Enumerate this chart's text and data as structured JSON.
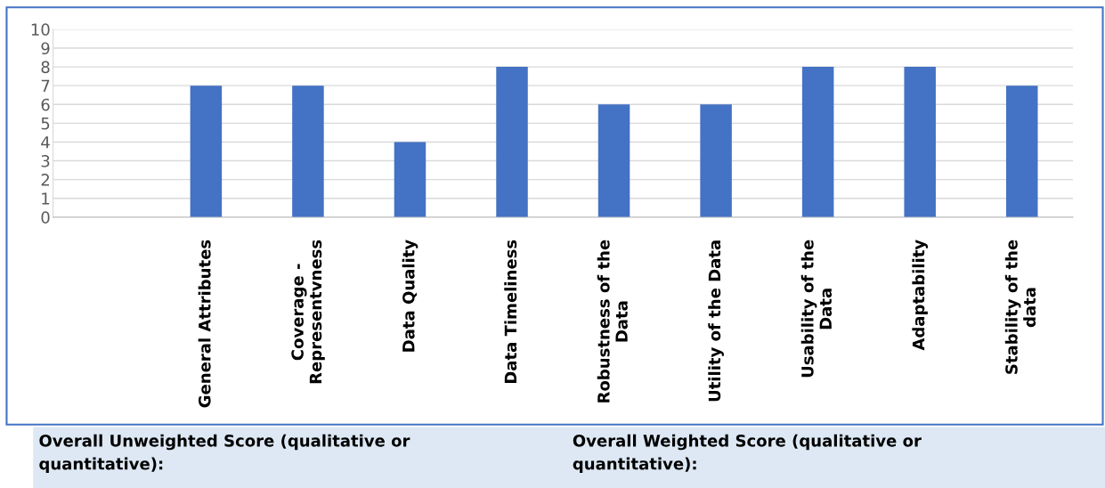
{
  "chart_data": {
    "type": "bar",
    "categories": [
      null,
      "General Attributes",
      "Coverage -\nRepresentvness",
      "Data Quality",
      "Data Timeliness",
      "Robustness of the\nData",
      "Utility of the Data",
      "Usability of the\nData",
      "Adaptability",
      "Stability of the\ndata"
    ],
    "values": [
      null,
      7,
      7,
      4,
      8,
      6,
      6,
      8,
      8,
      7
    ],
    "color": "#4472c4",
    "ylim": [
      0,
      10
    ],
    "yticks": [
      0,
      1,
      2,
      3,
      4,
      5,
      6,
      7,
      8,
      9,
      10
    ],
    "grid": "y",
    "annotations": [
      "Overall Unweighted Score (qualitative or\nquantitative):",
      "Overall Weighted Score (qualitative or\nquantitative):"
    ]
  }
}
